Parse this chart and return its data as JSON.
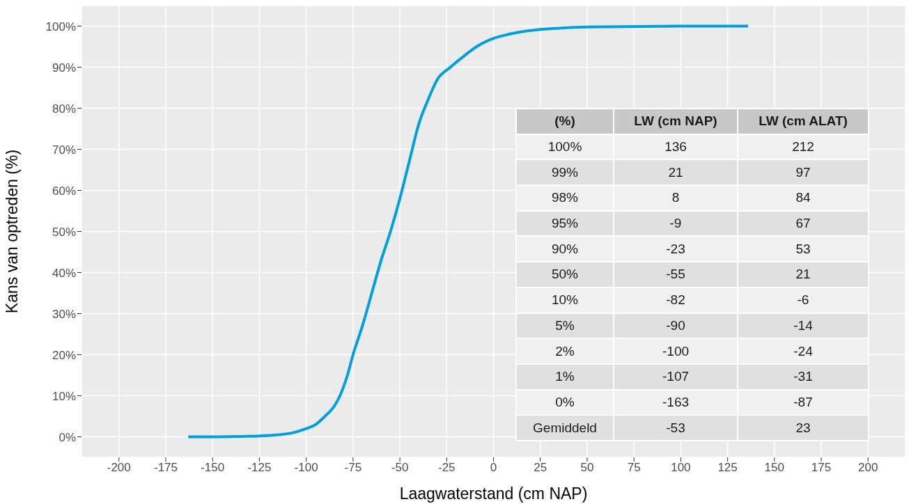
{
  "chart_data": {
    "type": "line",
    "xlabel": "Laagwaterstand (cm NAP)",
    "ylabel": "Kans van optreden (%)",
    "xlim": [
      -220,
      220
    ],
    "xticks": [
      -200,
      -175,
      -150,
      -125,
      -100,
      -75,
      -50,
      -25,
      0,
      25,
      50,
      75,
      100,
      125,
      150,
      175,
      200
    ],
    "ylim": [
      -5,
      105
    ],
    "yticks": [
      {
        "value": 0,
        "label": "0%"
      },
      {
        "value": 10,
        "label": "10%"
      },
      {
        "value": 20,
        "label": "20%"
      },
      {
        "value": 30,
        "label": "30%"
      },
      {
        "value": 40,
        "label": "40%"
      },
      {
        "value": 50,
        "label": "50%"
      },
      {
        "value": 60,
        "label": "60%"
      },
      {
        "value": 70,
        "label": "70%"
      },
      {
        "value": 80,
        "label": "80%"
      },
      {
        "value": 90,
        "label": "90%"
      },
      {
        "value": 100,
        "label": "100%"
      }
    ],
    "grid": true,
    "marker": "none",
    "line_style": "solid",
    "series": [
      {
        "color": "#00a0dd",
        "x": [
          -163,
          -150,
          -135,
          -125,
          -115,
          -107,
          -100,
          -95,
          -90,
          -85,
          -82,
          -78,
          -75,
          -70,
          -65,
          -60,
          -55,
          -50,
          -45,
          -40,
          -35,
          -30,
          -23,
          -15,
          -9,
          0,
          8,
          21,
          35,
          50,
          100,
          136
        ],
        "values": [
          0,
          0,
          0.1,
          0.2,
          0.5,
          1,
          2,
          3,
          5,
          7.5,
          10,
          15,
          20,
          27,
          35,
          43,
          50,
          58,
          67,
          76,
          82,
          87,
          90,
          93,
          95,
          97,
          98,
          99,
          99.5,
          99.8,
          100,
          100
        ]
      }
    ],
    "annotations": [
      "(%)",
      "LW (cm NAP)",
      "LW (cm ALAT)",
      "100%",
      "136",
      "212",
      "99%",
      "21",
      "97",
      "98%",
      "8",
      "84",
      "95%",
      "-9",
      "67",
      "90%",
      "-23",
      "53",
      "50%",
      "-55",
      "21",
      "10%",
      "-82",
      "-6",
      "5%",
      "-90",
      "-14",
      "2%",
      "-100",
      "-24",
      "1%",
      "-107",
      "-31",
      "0%",
      "-163",
      "-87",
      "Gemiddeld",
      "-53",
      "23"
    ]
  }
}
